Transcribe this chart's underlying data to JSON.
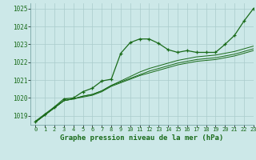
{
  "title": "Graphe pression niveau de la mer (hPa)",
  "background_color": "#cce8e8",
  "grid_color": "#aacccc",
  "line_color": "#1a6b1a",
  "xlim": [
    -0.5,
    23
  ],
  "ylim": [
    1018.5,
    1025.3
  ],
  "yticks": [
    1019,
    1020,
    1021,
    1022,
    1023,
    1024,
    1025
  ],
  "xticks": [
    0,
    1,
    2,
    3,
    4,
    5,
    6,
    7,
    8,
    9,
    10,
    11,
    12,
    13,
    14,
    15,
    16,
    17,
    18,
    19,
    20,
    21,
    22,
    23
  ],
  "line1": [
    1018.7,
    1019.1,
    1019.5,
    1019.95,
    1020.0,
    1020.35,
    1020.55,
    1020.95,
    1021.05,
    1022.5,
    1023.1,
    1023.3,
    1023.3,
    1023.05,
    1022.7,
    1022.55,
    1022.65,
    1022.55,
    1022.55,
    1022.55,
    1023.0,
    1023.5,
    1024.3,
    1025.0
  ],
  "line2": [
    1018.65,
    1019.05,
    1019.45,
    1019.85,
    1019.95,
    1020.1,
    1020.2,
    1020.4,
    1020.7,
    1020.95,
    1021.2,
    1021.45,
    1021.65,
    1021.8,
    1021.95,
    1022.1,
    1022.2,
    1022.3,
    1022.35,
    1022.4,
    1022.5,
    1022.6,
    1022.75,
    1022.9
  ],
  "line3": [
    1018.65,
    1019.05,
    1019.45,
    1019.85,
    1019.95,
    1020.1,
    1020.2,
    1020.4,
    1020.7,
    1020.9,
    1021.1,
    1021.3,
    1021.5,
    1021.65,
    1021.8,
    1021.95,
    1022.05,
    1022.15,
    1022.2,
    1022.25,
    1022.35,
    1022.45,
    1022.6,
    1022.75
  ],
  "line4": [
    1018.65,
    1019.05,
    1019.45,
    1019.85,
    1019.95,
    1020.05,
    1020.15,
    1020.35,
    1020.65,
    1020.85,
    1021.05,
    1021.25,
    1021.4,
    1021.55,
    1021.7,
    1021.85,
    1021.95,
    1022.05,
    1022.1,
    1022.15,
    1022.25,
    1022.35,
    1022.5,
    1022.65
  ]
}
